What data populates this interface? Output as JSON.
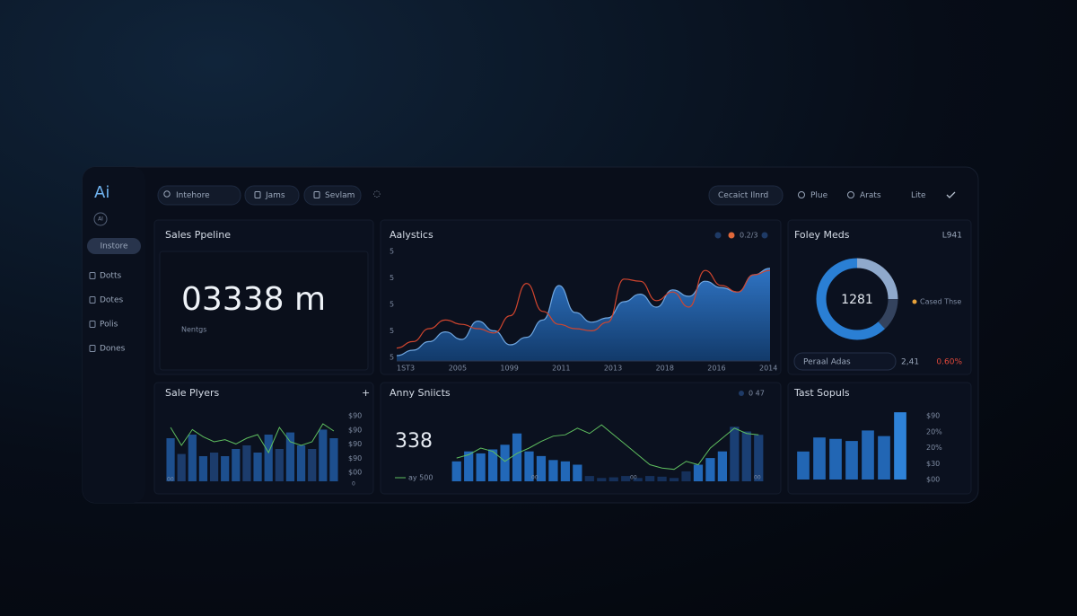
{
  "sidebar": {
    "logo": "Ai",
    "badge": "AI",
    "button": "Instore",
    "items": [
      "Dotts",
      "Dotes",
      "Polis",
      "Dones"
    ]
  },
  "toolbar": {
    "search": "Intehore",
    "tabs": [
      "Jams",
      "Sevlam"
    ],
    "dropdown": "Cecaict Ilnrd",
    "actions": [
      "Plue",
      "Arats",
      "Lite"
    ]
  },
  "pipeline": {
    "title": "Sales Ppeline",
    "value": "03338 m",
    "caption": "Nentgs"
  },
  "analytics": {
    "title": "Aalystics",
    "legend": "0.2/3",
    "y_labels": [
      "5",
      "5",
      "5",
      "5",
      "5"
    ],
    "x_labels": [
      "1ST3",
      "2005",
      "1099",
      "2011",
      "2013",
      "2018",
      "2016",
      "2014"
    ],
    "ylim": [
      0,
      100
    ],
    "area": [
      5,
      10,
      18,
      27,
      20,
      37,
      28,
      15,
      22,
      38,
      70,
      45,
      36,
      40,
      55,
      62,
      50,
      66,
      60,
      74,
      68,
      64,
      80,
      86
    ],
    "line": [
      12,
      18,
      30,
      38,
      34,
      30,
      26,
      42,
      72,
      46,
      34,
      30,
      28,
      36,
      76,
      74,
      56,
      64,
      50,
      84,
      70,
      64,
      80,
      84
    ]
  },
  "meds": {
    "title": "Foley Meds",
    "total": "L941",
    "center": "1281",
    "legend": "Cased Thse",
    "segments": [
      25,
      13,
      62
    ],
    "colors": [
      "#8fa9cc",
      "#34435e",
      "#2a7fd4"
    ],
    "footer": {
      "label": "Peraal Adas",
      "value": "2,41",
      "change": "0.60%"
    }
  },
  "players": {
    "title": "Sale Plyers",
    "add": "+",
    "y_labels": [
      "$90",
      "$90",
      "$90",
      "$90",
      "$00"
    ],
    "x_labels": [
      "00",
      "0"
    ],
    "ylim": [
      0,
      100
    ],
    "bars": [
      60,
      38,
      65,
      35,
      40,
      35,
      45,
      50,
      40,
      65,
      45,
      68,
      50,
      45,
      72,
      60
    ],
    "line": [
      75,
      50,
      72,
      62,
      55,
      58,
      52,
      60,
      65,
      40,
      75,
      55,
      50,
      55,
      80,
      70
    ]
  },
  "snicts": {
    "title": "Anny Sniicts",
    "badge": "0 47",
    "value": "338",
    "caption": "ay 500",
    "x_labels": [
      "00",
      "00",
      "00"
    ],
    "ylim": [
      0,
      100
    ],
    "bars": [
      30,
      45,
      42,
      48,
      55,
      72,
      45,
      38,
      32,
      30,
      25,
      8,
      5,
      6,
      8,
      5,
      8,
      7,
      5,
      15,
      25,
      35,
      45,
      82,
      75,
      70
    ],
    "line": [
      35,
      40,
      50,
      45,
      30,
      42,
      50,
      60,
      68,
      70,
      80,
      72,
      85,
      70,
      55,
      40,
      25,
      20,
      18,
      30,
      25,
      50,
      65,
      80,
      72,
      70
    ]
  },
  "sopuls": {
    "title": "Tast Sopuls",
    "y_labels": [
      "$90",
      "20%",
      "20%",
      "$30",
      "$00"
    ],
    "ylim": [
      0,
      100
    ],
    "bars": [
      40,
      60,
      58,
      55,
      70,
      62,
      96
    ]
  }
}
